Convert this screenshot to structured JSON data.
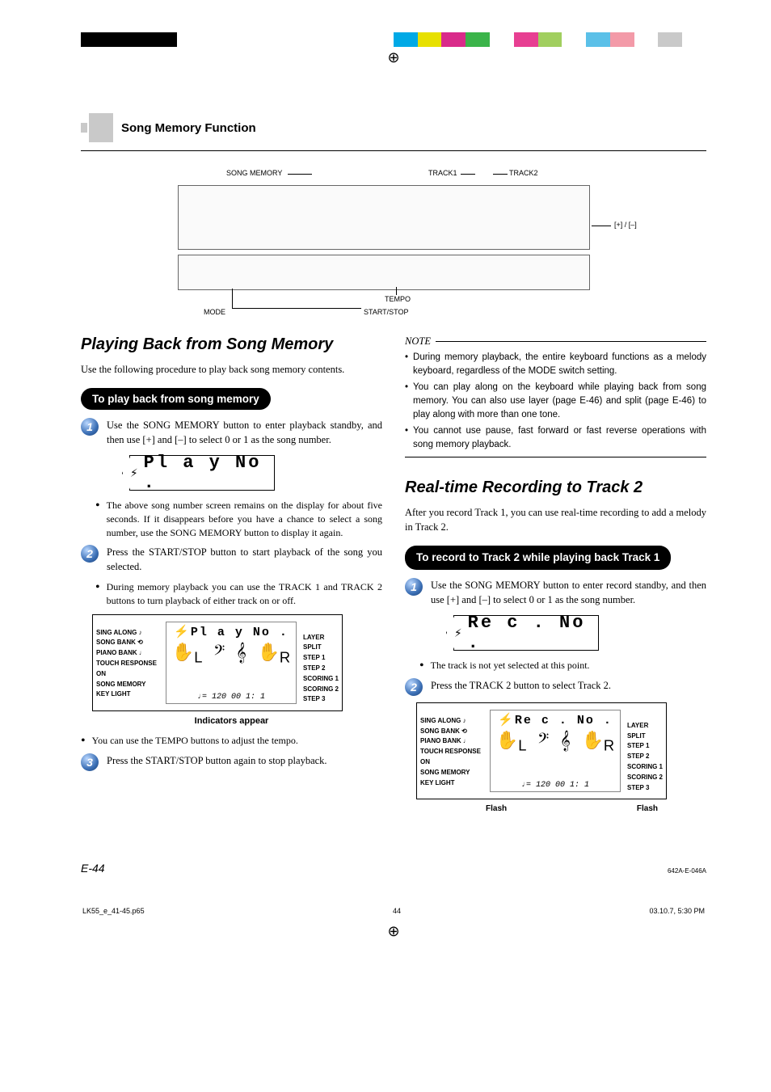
{
  "print": {
    "color_bar": [
      "#000000",
      "#000000",
      "#000000",
      "#000000",
      "#ffffff",
      "#ffffff",
      "#ffffff",
      "#ffffff",
      "#ffffff",
      "#ffffff",
      "#ffffff",
      "#ffffff",
      "#ffffff",
      "#00a9e6",
      "#e7e000",
      "#d92b8a",
      "#3bb44a",
      "#ffffff",
      "#e73f92",
      "#a1cf5f",
      "#ffffff",
      "#5bc0e8",
      "#f39aa8",
      "#ffffff",
      "#c9c9c9",
      "#ffffff"
    ]
  },
  "header": {
    "section_title": "Song Memory Function"
  },
  "keyboard_labels": {
    "song_memory": "SONG MEMORY",
    "track1": "TRACK1",
    "track2": "TRACK2",
    "plus_minus": "[+] / [–]",
    "tempo": "TEMPO",
    "start_stop": "START/STOP",
    "mode": "MODE"
  },
  "left": {
    "h1": "Playing Back from Song Memory",
    "intro": "Use the following procedure to play back song memory contents.",
    "pill": "To play back from song memory",
    "steps": [
      {
        "n": "1",
        "text": "Use the SONG MEMORY button to enter playback standby, and then use [+] and [–] to select 0 or 1 as the song number."
      },
      {
        "n": "2",
        "text": "Press the START/STOP button to start playback of the song you selected."
      },
      {
        "n": "3",
        "text": "Press the START/STOP button again to stop playback."
      }
    ],
    "lcd_play": "Pl a y  No .",
    "bullet_after_lcd": "The above song number screen remains on the display for about five seconds. If it disappears before you have a chance to select a song number, use the SONG MEMORY button to display it again.",
    "bullet_after_step2": "During memory playback you can use the TRACK 1 and TRACK 2 buttons to turn playback of either track on or off.",
    "display": {
      "left_labels": [
        "SING ALONG ♪",
        "SONG BANK ⟲",
        "PIANO BANK ♩",
        "TOUCH RESPONSE",
        "ON",
        "SONG MEMORY",
        "KEY LIGHT"
      ],
      "right_labels": [
        "LAYER",
        "SPLIT",
        "STEP 1",
        "STEP 2",
        "SCORING 1",
        "SCORING 2",
        "STEP 3"
      ],
      "title": "Pl a y  No .",
      "hand_l": "L",
      "hand_r": "R",
      "tempo": "♩= 120  00 1: 1",
      "caption": "Indicators appear"
    },
    "tempo_bullet": "You can use the TEMPO buttons to adjust the tempo."
  },
  "right": {
    "note_label": "NOTE",
    "notes": [
      "During memory playback, the entire keyboard functions as a melody keyboard, regardless of the MODE switch setting.",
      "You can play along on the keyboard while playing back from song memory. You can also use layer (page E-46) and split (page E-46) to play along with more than one tone.",
      "You cannot use pause, fast forward or fast reverse operations with song memory playback."
    ],
    "h1": "Real-time Recording to Track 2",
    "intro": "After you record Track 1, you can use real-time recording to add a melody in Track 2.",
    "pill": "To record to Track 2 while playing back Track 1",
    "steps": [
      {
        "n": "1",
        "text": "Use the SONG MEMORY button to enter record standby, and then use [+] and [–] to select 0 or 1 as the song number."
      },
      {
        "n": "2",
        "text": "Press the TRACK 2 button to select Track 2."
      }
    ],
    "lcd_rec": "Re c . No .",
    "bullet_rec": "The track is not yet selected at this point.",
    "display": {
      "left_labels": [
        "SING ALONG ♪",
        "SONG BANK ⟲",
        "PIANO BANK ♩",
        "TOUCH RESPONSE",
        "ON",
        "SONG MEMORY",
        "KEY LIGHT"
      ],
      "right_labels": [
        "LAYER",
        "SPLIT",
        "STEP 1",
        "STEP 2",
        "SCORING 1",
        "SCORING 2",
        "STEP 3"
      ],
      "title": "Re c . No .",
      "hand_l": "L",
      "hand_r": "R",
      "tempo": "♩= 120  00 1: 1",
      "flash_l": "Flash",
      "flash_r": "Flash"
    }
  },
  "footer": {
    "page": "E-44",
    "code": "642A-E-046A",
    "file": "LK55_e_41-45.p65",
    "sheet": "44",
    "timestamp": "03.10.7, 5:30 PM"
  }
}
